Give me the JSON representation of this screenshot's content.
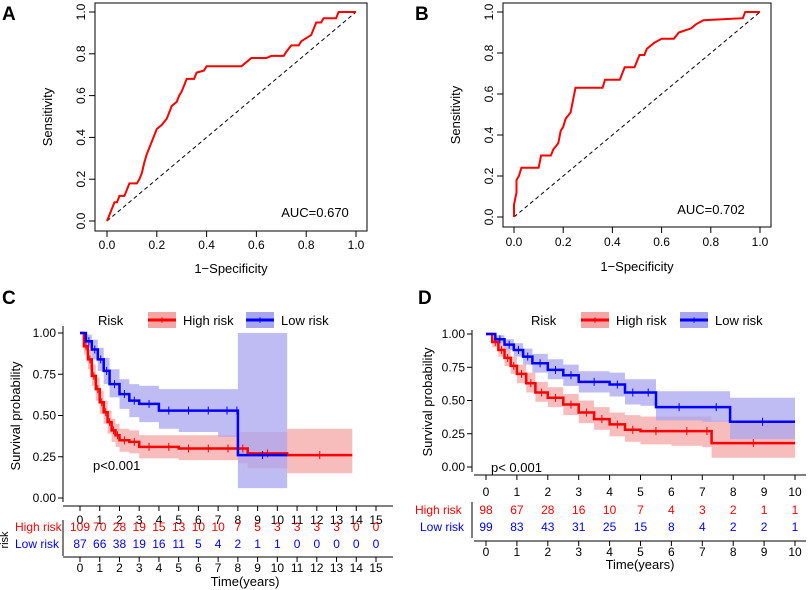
{
  "panels": {
    "A": {
      "letter": "A"
    },
    "B": {
      "letter": "B"
    },
    "C": {
      "letter": "C"
    },
    "D": {
      "letter": "D"
    }
  },
  "colors": {
    "high": "#ff0000",
    "low": "#0000ff",
    "high_band": "#f4a6a6",
    "low_band": "#a9a6f0"
  },
  "chart_data": [
    {
      "id": "A",
      "type": "line",
      "subtype": "roc",
      "xlabel": "1−Specificity",
      "ylabel": "Sensitivity",
      "xlim": [
        0,
        1
      ],
      "ylim": [
        0,
        1
      ],
      "ticks": [
        "0.0",
        "0.2",
        "0.4",
        "0.6",
        "0.8",
        "1.0"
      ],
      "annotation": "AUC=0.670",
      "points": [
        [
          0,
          0
        ],
        [
          0.01,
          0.03
        ],
        [
          0.02,
          0.06
        ],
        [
          0.03,
          0.09
        ],
        [
          0.04,
          0.09
        ],
        [
          0.05,
          0.12
        ],
        [
          0.07,
          0.12
        ],
        [
          0.08,
          0.15
        ],
        [
          0.09,
          0.18
        ],
        [
          0.12,
          0.18
        ],
        [
          0.13,
          0.2
        ],
        [
          0.14,
          0.23
        ],
        [
          0.15,
          0.28
        ],
        [
          0.16,
          0.32
        ],
        [
          0.17,
          0.35
        ],
        [
          0.18,
          0.38
        ],
        [
          0.19,
          0.41
        ],
        [
          0.2,
          0.44
        ],
        [
          0.22,
          0.46
        ],
        [
          0.24,
          0.49
        ],
        [
          0.25,
          0.52
        ],
        [
          0.26,
          0.55
        ],
        [
          0.28,
          0.57
        ],
        [
          0.29,
          0.6
        ],
        [
          0.3,
          0.62
        ],
        [
          0.31,
          0.65
        ],
        [
          0.32,
          0.68
        ],
        [
          0.35,
          0.68
        ],
        [
          0.36,
          0.71
        ],
        [
          0.39,
          0.72
        ],
        [
          0.4,
          0.74
        ],
        [
          0.54,
          0.74
        ],
        [
          0.56,
          0.76
        ],
        [
          0.58,
          0.78
        ],
        [
          0.64,
          0.78
        ],
        [
          0.66,
          0.79
        ],
        [
          0.71,
          0.79
        ],
        [
          0.72,
          0.81
        ],
        [
          0.74,
          0.84
        ],
        [
          0.77,
          0.84
        ],
        [
          0.78,
          0.86
        ],
        [
          0.82,
          0.89
        ],
        [
          0.84,
          0.95
        ],
        [
          0.86,
          0.95
        ],
        [
          0.87,
          0.97
        ],
        [
          0.92,
          0.97
        ],
        [
          0.93,
          1.0
        ],
        [
          1.0,
          1.0
        ]
      ]
    },
    {
      "id": "B",
      "type": "line",
      "subtype": "roc",
      "xlabel": "1−Specificity",
      "ylabel": "Sensitivity",
      "xlim": [
        0,
        1
      ],
      "ylim": [
        0,
        1
      ],
      "ticks": [
        "0.0",
        "0.2",
        "0.4",
        "0.6",
        "0.8",
        "1.0"
      ],
      "annotation": "AUC=0.702",
      "points": [
        [
          0,
          0
        ],
        [
          0,
          0.06
        ],
        [
          0.01,
          0.12
        ],
        [
          0.01,
          0.18
        ],
        [
          0.02,
          0.2
        ],
        [
          0.03,
          0.24
        ],
        [
          0.1,
          0.24
        ],
        [
          0.11,
          0.3
        ],
        [
          0.15,
          0.3
        ],
        [
          0.16,
          0.33
        ],
        [
          0.18,
          0.36
        ],
        [
          0.19,
          0.42
        ],
        [
          0.2,
          0.44
        ],
        [
          0.21,
          0.48
        ],
        [
          0.23,
          0.51
        ],
        [
          0.24,
          0.57
        ],
        [
          0.25,
          0.63
        ],
        [
          0.36,
          0.63
        ],
        [
          0.37,
          0.67
        ],
        [
          0.43,
          0.67
        ],
        [
          0.45,
          0.73
        ],
        [
          0.49,
          0.73
        ],
        [
          0.51,
          0.79
        ],
        [
          0.53,
          0.79
        ],
        [
          0.54,
          0.82
        ],
        [
          0.57,
          0.85
        ],
        [
          0.6,
          0.87
        ],
        [
          0.65,
          0.87
        ],
        [
          0.67,
          0.9
        ],
        [
          0.72,
          0.92
        ],
        [
          0.74,
          0.94
        ],
        [
          0.77,
          0.96
        ],
        [
          0.93,
          0.97
        ],
        [
          0.94,
          1.0
        ],
        [
          1.0,
          1.0
        ]
      ]
    },
    {
      "id": "C",
      "type": "line",
      "subtype": "kaplan-meier",
      "legend_title": "Risk",
      "legend": [
        "High risk",
        "Low risk"
      ],
      "ylabel": "Survival probability",
      "xlabel": "Time(years)",
      "xlim": [
        0,
        15
      ],
      "ylim": [
        0,
        1
      ],
      "yticks": [
        "0.00",
        "0.25",
        "0.50",
        "0.75",
        "1.00"
      ],
      "xticks": [
        "0",
        "1",
        "2",
        "3",
        "4",
        "5",
        "6",
        "7",
        "8",
        "9",
        "10",
        "11",
        "12",
        "13",
        "14",
        "15"
      ],
      "pvalue": "p<0.001",
      "risk_title": "risk",
      "risk_table": [
        {
          "label": "High risk",
          "values": [
            "109",
            "70",
            "28",
            "19",
            "15",
            "13",
            "10",
            "10",
            "7",
            "5",
            "3",
            "3",
            "3",
            "3",
            "0",
            "0"
          ]
        },
        {
          "label": "Low risk",
          "values": [
            "87",
            "66",
            "38",
            "19",
            "16",
            "11",
            "5",
            "4",
            "2",
            "1",
            "1",
            "0",
            "0",
            "0",
            "0",
            "0"
          ]
        }
      ],
      "series": [
        {
          "name": "High risk",
          "x": [
            0,
            0.2,
            0.4,
            0.6,
            0.8,
            1.0,
            1.2,
            1.4,
            1.6,
            1.8,
            2.0,
            2.5,
            3.0,
            4.0,
            5.0,
            6.0,
            7.0,
            8.0,
            8.5,
            10.5,
            13.8
          ],
          "y": [
            1.0,
            0.92,
            0.84,
            0.74,
            0.66,
            0.58,
            0.52,
            0.46,
            0.41,
            0.38,
            0.35,
            0.34,
            0.31,
            0.31,
            0.3,
            0.3,
            0.3,
            0.3,
            0.27,
            0.26,
            0.26
          ],
          "lower": [
            1.0,
            0.87,
            0.78,
            0.68,
            0.59,
            0.51,
            0.45,
            0.39,
            0.34,
            0.31,
            0.28,
            0.27,
            0.24,
            0.24,
            0.23,
            0.23,
            0.23,
            0.21,
            0.18,
            0.15,
            0.15
          ],
          "upper": [
            1.0,
            0.96,
            0.9,
            0.81,
            0.73,
            0.65,
            0.59,
            0.53,
            0.48,
            0.45,
            0.42,
            0.41,
            0.38,
            0.38,
            0.38,
            0.38,
            0.38,
            0.4,
            0.4,
            0.42,
            0.42
          ]
        },
        {
          "name": "Low risk",
          "x": [
            0,
            0.3,
            0.6,
            0.9,
            1.2,
            1.5,
            2.0,
            2.5,
            3.0,
            4.0,
            5.0,
            6.0,
            7.0,
            7.9,
            8.0,
            10.5
          ],
          "y": [
            1.0,
            0.95,
            0.9,
            0.84,
            0.77,
            0.69,
            0.63,
            0.59,
            0.57,
            0.53,
            0.53,
            0.53,
            0.53,
            0.53,
            0.26,
            0.26
          ],
          "lower": [
            1.0,
            0.91,
            0.84,
            0.77,
            0.69,
            0.61,
            0.54,
            0.49,
            0.46,
            0.42,
            0.4,
            0.4,
            0.37,
            0.37,
            0.06,
            0.06
          ],
          "upper": [
            1.0,
            0.99,
            0.96,
            0.91,
            0.85,
            0.78,
            0.72,
            0.69,
            0.68,
            0.66,
            0.66,
            0.66,
            0.66,
            0.66,
            1.0,
            1.0
          ]
        }
      ]
    },
    {
      "id": "D",
      "type": "line",
      "subtype": "kaplan-meier",
      "legend_title": "Risk",
      "legend": [
        "High risk",
        "Low risk"
      ],
      "ylabel": "Survival probability",
      "xlabel": "Time(years)",
      "xlim": [
        0,
        10
      ],
      "ylim": [
        0,
        1
      ],
      "yticks": [
        "0.00",
        "0.25",
        "0.50",
        "0.75",
        "1.00"
      ],
      "xticks": [
        "0",
        "1",
        "2",
        "3",
        "4",
        "5",
        "6",
        "7",
        "8",
        "9",
        "10"
      ],
      "pvalue": "p< 0.001",
      "risk_table": [
        {
          "label": "High risk",
          "values": [
            "98",
            "67",
            "28",
            "16",
            "10",
            "7",
            "4",
            "3",
            "2",
            "1",
            "1"
          ]
        },
        {
          "label": "Low risk",
          "values": [
            "99",
            "83",
            "43",
            "31",
            "25",
            "15",
            "8",
            "4",
            "2",
            "2",
            "1"
          ]
        }
      ],
      "series": [
        {
          "name": "High risk",
          "x": [
            0,
            0.2,
            0.4,
            0.6,
            0.8,
            1.0,
            1.3,
            1.6,
            2.0,
            2.5,
            3.0,
            3.5,
            4.0,
            4.5,
            5.0,
            6.0,
            7.0,
            7.3,
            10.0
          ],
          "y": [
            1.0,
            0.94,
            0.88,
            0.82,
            0.76,
            0.7,
            0.63,
            0.56,
            0.52,
            0.47,
            0.41,
            0.36,
            0.32,
            0.28,
            0.27,
            0.27,
            0.27,
            0.18,
            0.18
          ],
          "lower": [
            1.0,
            0.9,
            0.83,
            0.76,
            0.7,
            0.63,
            0.56,
            0.49,
            0.45,
            0.39,
            0.33,
            0.28,
            0.23,
            0.19,
            0.17,
            0.16,
            0.15,
            0.07,
            0.07
          ],
          "upper": [
            1.0,
            0.97,
            0.93,
            0.88,
            0.83,
            0.77,
            0.71,
            0.64,
            0.6,
            0.55,
            0.5,
            0.45,
            0.41,
            0.39,
            0.38,
            0.38,
            0.38,
            0.35,
            0.35
          ]
        },
        {
          "name": "Low risk",
          "x": [
            0,
            0.3,
            0.6,
            0.9,
            1.2,
            1.5,
            2.0,
            2.5,
            3.0,
            4.0,
            4.5,
            5.0,
            5.5,
            7.0,
            7.9,
            10.0
          ],
          "y": [
            1.0,
            0.96,
            0.92,
            0.88,
            0.83,
            0.78,
            0.73,
            0.69,
            0.64,
            0.62,
            0.56,
            0.56,
            0.45,
            0.45,
            0.34,
            0.34
          ],
          "lower": [
            1.0,
            0.93,
            0.88,
            0.83,
            0.77,
            0.71,
            0.66,
            0.61,
            0.56,
            0.53,
            0.47,
            0.46,
            0.35,
            0.34,
            0.21,
            0.21
          ],
          "upper": [
            1.0,
            0.99,
            0.96,
            0.93,
            0.89,
            0.85,
            0.81,
            0.77,
            0.72,
            0.71,
            0.66,
            0.66,
            0.57,
            0.57,
            0.52,
            0.52
          ]
        }
      ]
    }
  ]
}
